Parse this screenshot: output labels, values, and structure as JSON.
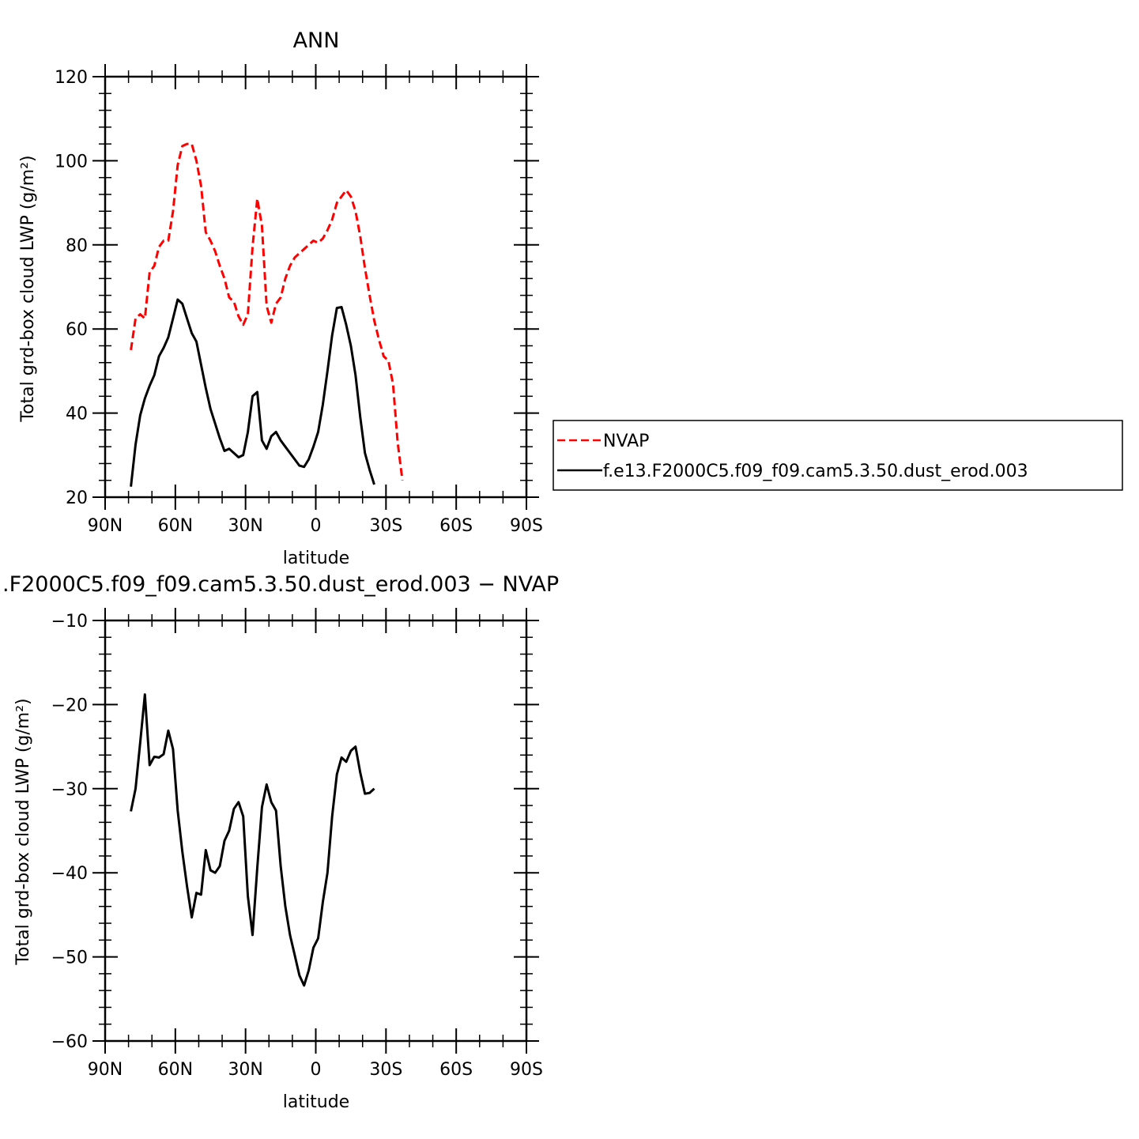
{
  "chart_data": [
    {
      "type": "line",
      "title": "ANN",
      "xlabel": "latitude",
      "ylabel": "Total grd-box cloud LWP (g/m²)",
      "xlim": [
        90,
        -90
      ],
      "ylim": [
        20,
        120
      ],
      "yticks": [
        20,
        40,
        60,
        80,
        100,
        120
      ],
      "xtick_values": [
        90,
        60,
        30,
        0,
        -30,
        -60,
        -90
      ],
      "xtick_labels": [
        "90N",
        "60N",
        "30N",
        "0",
        "30S",
        "60S",
        "90S"
      ],
      "legend": "right-outside",
      "series": [
        {
          "name": "NVAP",
          "color": "#ff0000",
          "style": "dashed",
          "points": [
            [
              79,
              55
            ],
            [
              77,
              62.5
            ],
            [
              75,
              63.5
            ],
            [
              73,
              62.5
            ],
            [
              71,
              73.5
            ],
            [
              69,
              75
            ],
            [
              67,
              79.5
            ],
            [
              65,
              81
            ],
            [
              63,
              81
            ],
            [
              61,
              88
            ],
            [
              59,
              99
            ],
            [
              57,
              103.5
            ],
            [
              55,
              104
            ],
            [
              53,
              104
            ],
            [
              51,
              100
            ],
            [
              49,
              94
            ],
            [
              47,
              83
            ],
            [
              45,
              81
            ],
            [
              43,
              78.5
            ],
            [
              41,
              75
            ],
            [
              39,
              72
            ],
            [
              37,
              67.5
            ],
            [
              35,
              66.5
            ],
            [
              33,
              63
            ],
            [
              31,
              61
            ],
            [
              29,
              63.5
            ],
            [
              27,
              79.5
            ],
            [
              25,
              91
            ],
            [
              23,
              84.5
            ],
            [
              21,
              65.5
            ],
            [
              19,
              61.5
            ],
            [
              17,
              66
            ],
            [
              15,
              67.5
            ],
            [
              13,
              72
            ],
            [
              11,
              75
            ],
            [
              9,
              77
            ],
            [
              7,
              78
            ],
            [
              5,
              79
            ],
            [
              3,
              80
            ],
            [
              1,
              81
            ],
            [
              -1,
              80.5
            ],
            [
              -3,
              81.5
            ],
            [
              -5,
              83.5
            ],
            [
              -7,
              86
            ],
            [
              -9,
              90
            ],
            [
              -11,
              91.5
            ],
            [
              -13,
              93
            ],
            [
              -15,
              91.5
            ],
            [
              -17,
              88
            ],
            [
              -19,
              82
            ],
            [
              -21,
              74.5
            ],
            [
              -23,
              68
            ],
            [
              -25,
              62
            ],
            [
              -27,
              57.5
            ],
            [
              -29,
              53.5
            ],
            [
              -31,
              52.5
            ],
            [
              -33,
              47
            ],
            [
              -35,
              33
            ],
            [
              -37,
              24
            ]
          ]
        },
        {
          "name": "f.e13.F2000C5.f09_f09.cam5.3.50.dust_erod.003",
          "color": "#000000",
          "style": "solid",
          "points": [
            [
              79,
              22.5
            ],
            [
              77,
              32.5
            ],
            [
              75,
              39.5
            ],
            [
              73,
              43.5
            ],
            [
              71,
              46.5
            ],
            [
              69,
              49
            ],
            [
              67,
              53.5
            ],
            [
              65,
              55.5
            ],
            [
              63,
              58
            ],
            [
              61,
              62.5
            ],
            [
              59,
              67
            ],
            [
              57,
              66
            ],
            [
              55,
              62.5
            ],
            [
              53,
              59
            ],
            [
              51,
              57
            ],
            [
              49,
              51.5
            ],
            [
              47,
              46
            ],
            [
              45,
              41
            ],
            [
              43,
              37.5
            ],
            [
              41,
              34
            ],
            [
              39,
              31
            ],
            [
              37,
              31.5
            ],
            [
              35,
              30.5
            ],
            [
              33,
              29.5
            ],
            [
              31,
              30
            ],
            [
              29,
              35.5
            ],
            [
              27,
              44
            ],
            [
              25,
              45
            ],
            [
              23,
              33.5
            ],
            [
              21,
              31.5
            ],
            [
              19,
              34.5
            ],
            [
              17,
              35.5
            ],
            [
              15,
              33.5
            ],
            [
              13,
              32
            ],
            [
              11,
              30.5
            ],
            [
              9,
              29
            ],
            [
              7,
              27.5
            ],
            [
              5,
              27.2
            ],
            [
              3,
              29
            ],
            [
              1,
              32
            ],
            [
              -1,
              35.5
            ],
            [
              -3,
              42
            ],
            [
              -5,
              50
            ],
            [
              -7,
              58.5
            ],
            [
              -9,
              65
            ],
            [
              -11,
              65.2
            ],
            [
              -13,
              61
            ],
            [
              -15,
              56
            ],
            [
              -17,
              49
            ],
            [
              -19,
              39
            ],
            [
              -21,
              30.5
            ],
            [
              -23,
              26.5
            ],
            [
              -25,
              23
            ]
          ]
        }
      ]
    },
    {
      "type": "line",
      "title": ".F2000C5.f09_f09.cam5.3.50.dust_erod.003 − NVAP",
      "xlabel": "latitude",
      "ylabel": "Total grd-box cloud LWP (g/m²)",
      "xlim": [
        90,
        -90
      ],
      "ylim": [
        -60,
        -10
      ],
      "yticks": [
        -60,
        -50,
        -40,
        -30,
        -20,
        -10
      ],
      "ytick_labels": [
        "−60",
        "−50",
        "−40",
        "−30",
        "−20",
        "−10"
      ],
      "xtick_values": [
        90,
        60,
        30,
        0,
        -30,
        -60,
        -90
      ],
      "xtick_labels": [
        "90N",
        "60N",
        "30N",
        "0",
        "30S",
        "60S",
        "90S"
      ],
      "series": [
        {
          "color": "#000000",
          "style": "solid",
          "points": [
            [
              79,
              -32.7
            ],
            [
              77,
              -30
            ],
            [
              75,
              -24.5
            ],
            [
              73,
              -18.8
            ],
            [
              71,
              -27.2
            ],
            [
              69,
              -26.2
            ],
            [
              67,
              -26.3
            ],
            [
              65,
              -25.9
            ],
            [
              63,
              -23.1
            ],
            [
              61,
              -25.3
            ],
            [
              59,
              -32.6
            ],
            [
              57,
              -37.5
            ],
            [
              55,
              -41.6
            ],
            [
              53,
              -45.3
            ],
            [
              51,
              -42.4
            ],
            [
              49,
              -42.6
            ],
            [
              47,
              -37.3
            ],
            [
              45,
              -39.7
            ],
            [
              43,
              -40
            ],
            [
              41,
              -39.2
            ],
            [
              39,
              -36.2
            ],
            [
              37,
              -35
            ],
            [
              35,
              -32.4
            ],
            [
              33,
              -31.6
            ],
            [
              31,
              -33.3
            ],
            [
              29,
              -42.8
            ],
            [
              27,
              -47.4
            ],
            [
              25,
              -39.4
            ],
            [
              23,
              -32.2
            ],
            [
              21,
              -29.5
            ],
            [
              19,
              -31.6
            ],
            [
              17,
              -32.6
            ],
            [
              15,
              -39.2
            ],
            [
              13,
              -44
            ],
            [
              11,
              -47.4
            ],
            [
              9,
              -49.8
            ],
            [
              7,
              -52.2
            ],
            [
              5,
              -53.4
            ],
            [
              3,
              -51.6
            ],
            [
              1,
              -48.9
            ],
            [
              -1,
              -47.8
            ],
            [
              -3,
              -43.5
            ],
            [
              -5,
              -40
            ],
            [
              -7,
              -33.3
            ],
            [
              -9,
              -28.3
            ],
            [
              -11,
              -26.3
            ],
            [
              -13,
              -26.8
            ],
            [
              -15,
              -25.5
            ],
            [
              -17,
              -25
            ],
            [
              -19,
              -28.1
            ],
            [
              -21,
              -30.6
            ],
            [
              -23,
              -30.5
            ],
            [
              -25,
              -30
            ]
          ]
        }
      ]
    }
  ]
}
